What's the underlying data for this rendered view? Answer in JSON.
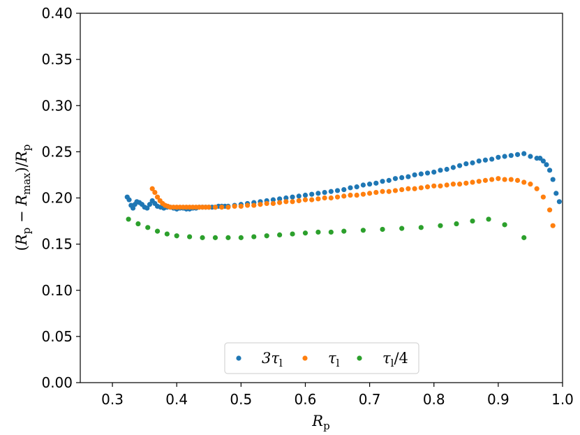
{
  "chart_data": {
    "type": "scatter",
    "title": "",
    "xlabel": "R_p",
    "ylabel": "(R_p − R_max)/R_p",
    "xlim": [
      0.25,
      1.0
    ],
    "ylim": [
      0.0,
      0.4
    ],
    "xticks": [
      "0.3",
      "0.4",
      "0.5",
      "0.6",
      "0.7",
      "0.8",
      "0.9",
      "1.0"
    ],
    "yticks": [
      "0.00",
      "0.05",
      "0.10",
      "0.15",
      "0.20",
      "0.25",
      "0.30",
      "0.35",
      "0.40"
    ],
    "grid": false,
    "legend": {
      "placement": "bottom-center",
      "columns": 3
    },
    "series": [
      {
        "name": "3τ_l",
        "label_main": "3τ",
        "label_sub": "l",
        "label_suffix": "",
        "color": "#1f77b4",
        "x": [
          0.323,
          0.326,
          0.329,
          0.332,
          0.335,
          0.338,
          0.342,
          0.346,
          0.35,
          0.354,
          0.358,
          0.362,
          0.366,
          0.37,
          0.375,
          0.38,
          0.385,
          0.39,
          0.395,
          0.4,
          0.405,
          0.41,
          0.415,
          0.42,
          0.425,
          0.43,
          0.435,
          0.44,
          0.445,
          0.45,
          0.455,
          0.46,
          0.465,
          0.47,
          0.475,
          0.48,
          0.49,
          0.5,
          0.51,
          0.52,
          0.53,
          0.54,
          0.55,
          0.56,
          0.57,
          0.58,
          0.59,
          0.6,
          0.61,
          0.62,
          0.63,
          0.64,
          0.65,
          0.66,
          0.67,
          0.68,
          0.69,
          0.7,
          0.71,
          0.72,
          0.73,
          0.74,
          0.75,
          0.76,
          0.77,
          0.78,
          0.79,
          0.8,
          0.81,
          0.82,
          0.83,
          0.84,
          0.85,
          0.86,
          0.87,
          0.88,
          0.89,
          0.9,
          0.91,
          0.92,
          0.93,
          0.94,
          0.95,
          0.96,
          0.965,
          0.97,
          0.975,
          0.98,
          0.985,
          0.99,
          0.995
        ],
        "y": [
          0.201,
          0.198,
          0.192,
          0.189,
          0.193,
          0.196,
          0.195,
          0.193,
          0.19,
          0.189,
          0.193,
          0.197,
          0.194,
          0.191,
          0.19,
          0.189,
          0.19,
          0.19,
          0.189,
          0.188,
          0.189,
          0.189,
          0.188,
          0.188,
          0.189,
          0.189,
          0.19,
          0.19,
          0.19,
          0.19,
          0.19,
          0.19,
          0.191,
          0.191,
          0.191,
          0.191,
          0.192,
          0.193,
          0.194,
          0.195,
          0.196,
          0.197,
          0.198,
          0.199,
          0.2,
          0.201,
          0.202,
          0.203,
          0.204,
          0.205,
          0.206,
          0.207,
          0.208,
          0.209,
          0.211,
          0.212,
          0.214,
          0.215,
          0.216,
          0.218,
          0.219,
          0.221,
          0.222,
          0.223,
          0.225,
          0.226,
          0.227,
          0.228,
          0.23,
          0.231,
          0.233,
          0.235,
          0.237,
          0.238,
          0.24,
          0.241,
          0.242,
          0.244,
          0.245,
          0.246,
          0.247,
          0.248,
          0.245,
          0.243,
          0.243,
          0.24,
          0.236,
          0.23,
          0.22,
          0.205,
          0.196
        ]
      },
      {
        "name": "τ_l",
        "label_main": "τ",
        "label_sub": "l",
        "label_suffix": "",
        "color": "#ff7f0e",
        "x": [
          0.362,
          0.366,
          0.37,
          0.374,
          0.378,
          0.382,
          0.386,
          0.39,
          0.395,
          0.4,
          0.405,
          0.41,
          0.415,
          0.42,
          0.425,
          0.43,
          0.435,
          0.44,
          0.445,
          0.45,
          0.46,
          0.47,
          0.48,
          0.49,
          0.5,
          0.51,
          0.52,
          0.53,
          0.54,
          0.55,
          0.56,
          0.57,
          0.58,
          0.59,
          0.6,
          0.61,
          0.62,
          0.63,
          0.64,
          0.65,
          0.66,
          0.67,
          0.68,
          0.69,
          0.7,
          0.71,
          0.72,
          0.73,
          0.74,
          0.75,
          0.76,
          0.77,
          0.78,
          0.79,
          0.8,
          0.81,
          0.82,
          0.83,
          0.84,
          0.85,
          0.86,
          0.87,
          0.88,
          0.89,
          0.9,
          0.91,
          0.92,
          0.93,
          0.94,
          0.95,
          0.96,
          0.97,
          0.98,
          0.985
        ],
        "y": [
          0.21,
          0.206,
          0.201,
          0.197,
          0.194,
          0.192,
          0.191,
          0.19,
          0.19,
          0.19,
          0.19,
          0.19,
          0.19,
          0.19,
          0.19,
          0.19,
          0.19,
          0.19,
          0.19,
          0.19,
          0.19,
          0.19,
          0.19,
          0.191,
          0.191,
          0.192,
          0.192,
          0.193,
          0.194,
          0.194,
          0.195,
          0.196,
          0.196,
          0.197,
          0.198,
          0.198,
          0.199,
          0.2,
          0.2,
          0.201,
          0.202,
          0.203,
          0.203,
          0.204,
          0.205,
          0.206,
          0.207,
          0.207,
          0.208,
          0.209,
          0.21,
          0.21,
          0.211,
          0.212,
          0.213,
          0.213,
          0.214,
          0.215,
          0.215,
          0.216,
          0.217,
          0.218,
          0.219,
          0.22,
          0.221,
          0.22,
          0.22,
          0.219,
          0.217,
          0.215,
          0.21,
          0.201,
          0.187,
          0.17
        ]
      },
      {
        "name": "τ_l/4",
        "label_main": "τ",
        "label_sub": "l",
        "label_suffix": "/4",
        "color": "#2ca02c",
        "x": [
          0.325,
          0.34,
          0.355,
          0.37,
          0.385,
          0.4,
          0.42,
          0.44,
          0.46,
          0.48,
          0.5,
          0.52,
          0.54,
          0.56,
          0.58,
          0.6,
          0.62,
          0.64,
          0.66,
          0.69,
          0.72,
          0.75,
          0.78,
          0.81,
          0.835,
          0.86,
          0.885,
          0.91,
          0.94
        ],
        "y": [
          0.177,
          0.172,
          0.168,
          0.164,
          0.161,
          0.159,
          0.158,
          0.157,
          0.157,
          0.157,
          0.157,
          0.158,
          0.159,
          0.16,
          0.161,
          0.162,
          0.163,
          0.163,
          0.164,
          0.165,
          0.166,
          0.167,
          0.168,
          0.17,
          0.172,
          0.175,
          0.177,
          0.171,
          0.157
        ]
      }
    ]
  }
}
